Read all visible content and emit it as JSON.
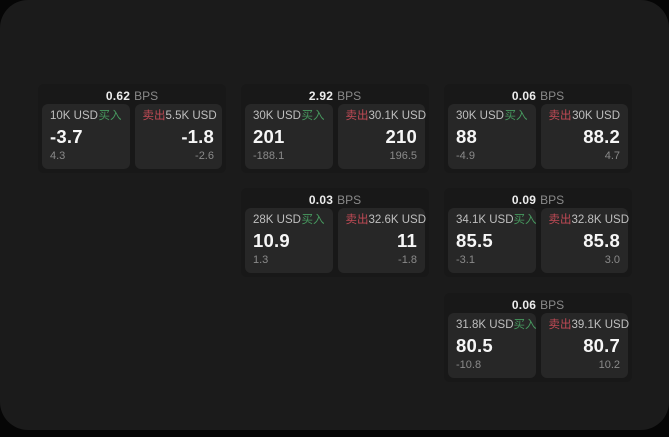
{
  "labels": {
    "bps_unit": "BPS",
    "buy": "买入",
    "sell": "卖出"
  },
  "colors": {
    "buy": "#47995f",
    "sell": "#c04a55",
    "page_bg": "#1b1b1b",
    "card_bg": "#181818",
    "panel_bg": "#272727"
  },
  "cards": [
    {
      "bps": "0.62",
      "buy": {
        "amount": "10K USD",
        "price": "-3.7",
        "delta": "4.3"
      },
      "sell": {
        "amount": "5.5K USD",
        "price": "-1.8",
        "delta": "-2.6"
      }
    },
    {
      "bps": "2.92",
      "buy": {
        "amount": "30K USD",
        "price": "201",
        "delta": "-188.1"
      },
      "sell": {
        "amount": "30.1K USD",
        "price": "210",
        "delta": "196.5"
      }
    },
    {
      "bps": "0.06",
      "buy": {
        "amount": "30K USD",
        "price": "88",
        "delta": "-4.9"
      },
      "sell": {
        "amount": "30K USD",
        "price": "88.2",
        "delta": "4.7"
      }
    },
    {
      "bps": "0.03",
      "buy": {
        "amount": "28K USD",
        "price": "10.9",
        "delta": "1.3"
      },
      "sell": {
        "amount": "32.6K USD",
        "price": "11",
        "delta": "-1.8"
      }
    },
    {
      "bps": "0.09",
      "buy": {
        "amount": "34.1K USD",
        "price": "85.5",
        "delta": "-3.1"
      },
      "sell": {
        "amount": "32.8K USD",
        "price": "85.8",
        "delta": "3.0"
      }
    },
    {
      "bps": "0.06",
      "buy": {
        "amount": "31.8K USD",
        "price": "80.5",
        "delta": "-10.8"
      },
      "sell": {
        "amount": "39.1K USD",
        "price": "80.7",
        "delta": "10.2"
      }
    }
  ]
}
